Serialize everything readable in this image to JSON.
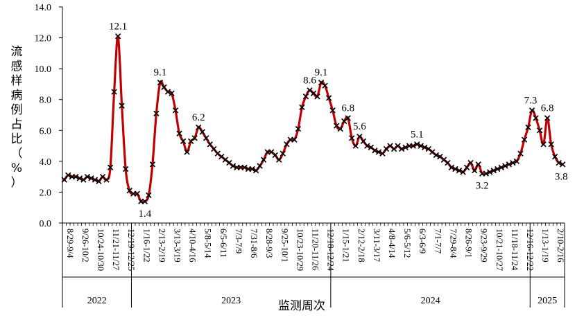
{
  "chart_data": {
    "type": "line",
    "xlabel": "监测周次",
    "ylabel": "流感样病例占比（%）",
    "ylim": [
      0,
      14
    ],
    "yticks": [
      "0.0",
      "2.0",
      "4.0",
      "6.0",
      "8.0",
      "10.0",
      "12.0",
      "14.0"
    ],
    "grid": false,
    "legend": "none",
    "line_color": "#c00000",
    "marker_color": "#000000",
    "marker": "x",
    "series": [
      {
        "values": [
          2.8,
          3.1,
          3.0,
          3.0,
          2.9,
          2.8,
          3.0,
          2.9,
          2.8,
          2.7,
          3.0,
          2.8,
          3.6,
          8.5,
          12.1,
          7.6,
          3.5,
          2.1,
          1.9,
          1.9,
          1.4,
          1.4,
          1.8,
          3.8,
          7.1,
          9.1,
          8.8,
          8.5,
          8.4,
          7.3,
          5.8,
          5.3,
          4.6,
          5.3,
          5.5,
          6.2,
          5.9,
          5.5,
          5.1,
          4.8,
          4.5,
          4.3,
          4.1,
          3.9,
          3.7,
          3.6,
          3.6,
          3.6,
          3.5,
          3.5,
          3.4,
          3.7,
          4.1,
          4.6,
          4.6,
          4.4,
          4.1,
          4.5,
          5.1,
          5.4,
          5.4,
          6.1,
          7.5,
          8.2,
          8.6,
          8.4,
          8.2,
          9.1,
          8.9,
          8.1,
          7.3,
          6.3,
          6.1,
          6.6,
          6.8,
          5.5,
          5.0,
          5.6,
          5.3,
          5.0,
          4.9,
          4.7,
          4.6,
          4.5,
          4.8,
          5.0,
          4.8,
          5.0,
          4.8,
          4.9,
          5.0,
          5.0,
          5.1,
          5.0,
          4.9,
          4.8,
          4.6,
          4.4,
          4.3,
          4.1,
          3.9,
          3.6,
          3.5,
          3.4,
          3.3,
          3.6,
          3.9,
          3.4,
          3.8,
          3.2,
          3.2,
          3.3,
          3.4,
          3.5,
          3.6,
          3.7,
          3.8,
          3.9,
          4.0,
          4.5,
          5.4,
          6.2,
          7.3,
          6.8,
          6.0,
          5.1,
          6.8,
          5.1,
          4.3,
          3.9,
          3.8
        ]
      }
    ],
    "x_tick_labels": [
      "8/29-9/4",
      "9/26-10/2",
      "10/24-10/30",
      "11/21-11/27",
      "12/19-12/25",
      "1/16-1/22",
      "2/13-2/19",
      "3/13-3/19",
      "4/10-4/16",
      "5/8-5/14",
      "6/5-6/11",
      "7/3-7/9",
      "7/31-8/6",
      "8/28-9/3",
      "9/25-10/1",
      "10/23-10/29",
      "11/20-11/26",
      "12/18-12/24",
      "1/15-1/21",
      "2/12-2/18",
      "3/11-3/17",
      "4/8-4/14",
      "5/6-5/12",
      "6/3-6/9",
      "7/1-7/7",
      "7/29-8/4",
      "8/26-9/1",
      "9/23-9/29",
      "10/21-10/27",
      "11/18-11/24",
      "12/16-12/22",
      "1/13-1/19",
      "2/10-2/16"
    ],
    "data_labels": [
      {
        "index": 14,
        "text": "12.1"
      },
      {
        "index": 21,
        "text": "1.4"
      },
      {
        "index": 25,
        "text": "9.1"
      },
      {
        "index": 35,
        "text": "6.2"
      },
      {
        "index": 64,
        "text": "8.6"
      },
      {
        "index": 67,
        "text": "9.1"
      },
      {
        "index": 74,
        "text": "6.8"
      },
      {
        "index": 77,
        "text": "5.6"
      },
      {
        "index": 92,
        "text": "5.1"
      },
      {
        "index": 109,
        "text": "3.2"
      },
      {
        "index": 122,
        "text": "7.3"
      },
      {
        "index": 126,
        "text": "6.8"
      },
      {
        "index": 130,
        "text": "3.8"
      }
    ],
    "years": [
      {
        "label": "2022",
        "start_index": 0,
        "end_index": 17
      },
      {
        "label": "2023",
        "start_index": 18,
        "end_index": 69
      },
      {
        "label": "2024",
        "start_index": 70,
        "end_index": 121
      },
      {
        "label": "2025",
        "start_index": 122,
        "end_index": 130
      }
    ]
  }
}
